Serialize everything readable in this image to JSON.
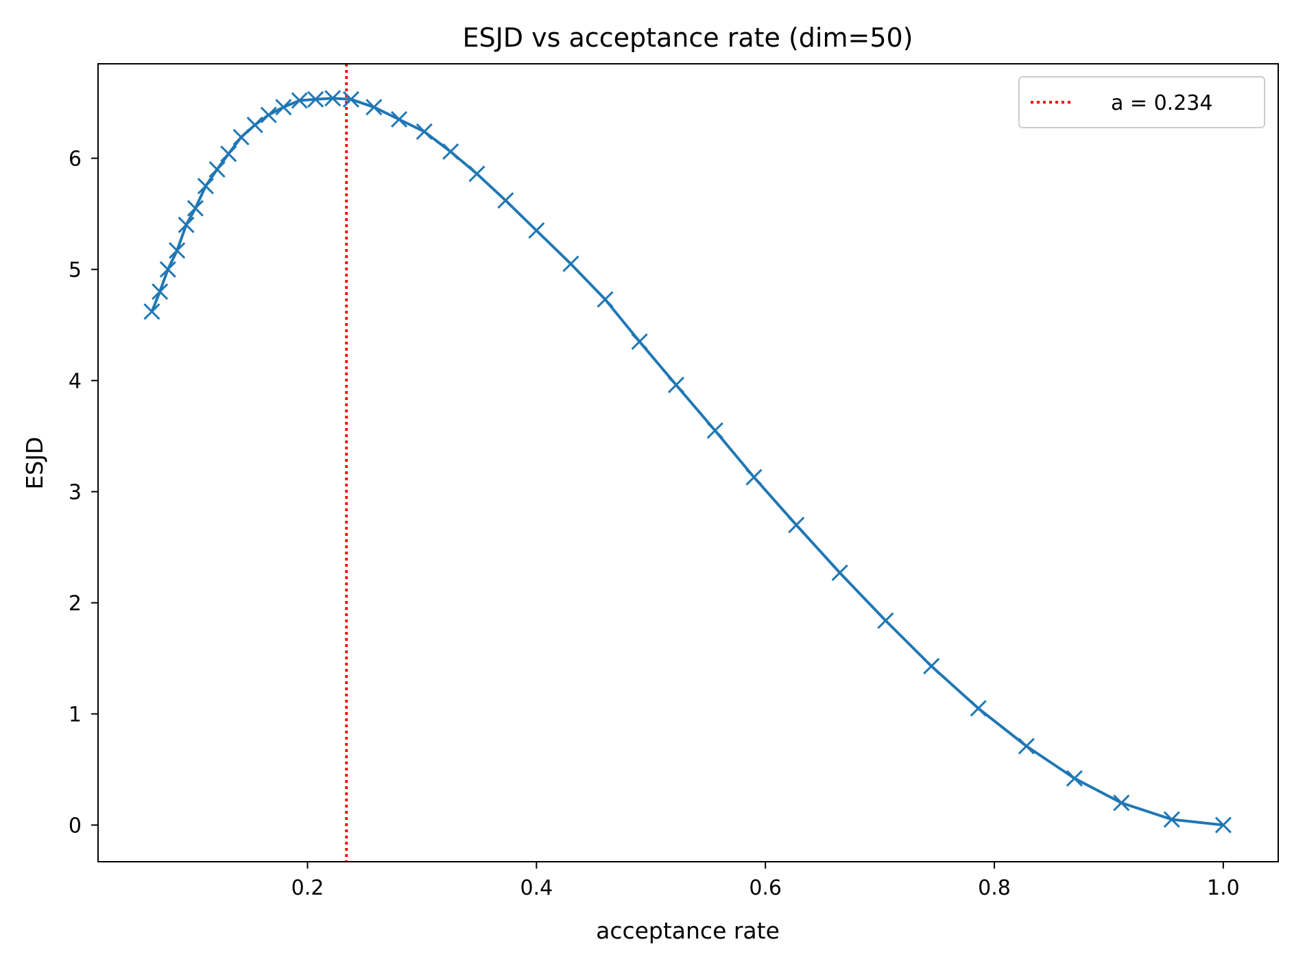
{
  "chart_data": {
    "type": "line",
    "title": "ESJD vs acceptance rate (dim=50)",
    "xlabel": "acceptance rate",
    "ylabel": "ESJD",
    "xlim": [
      0.017,
      1.048
    ],
    "ylim": [
      -0.33,
      6.85
    ],
    "xticks": [
      0.2,
      0.4,
      0.6,
      0.8,
      1.0
    ],
    "xtick_labels": [
      "0.2",
      "0.4",
      "0.6",
      "0.8",
      "1.0"
    ],
    "yticks": [
      0,
      1,
      2,
      3,
      4,
      5,
      6
    ],
    "ytick_labels": [
      "0",
      "1",
      "2",
      "3",
      "4",
      "5",
      "6"
    ],
    "grid": false,
    "legend_position": "top-right",
    "series": [
      {
        "name": "ESJD",
        "color": "#1f77b4",
        "marker": "x",
        "x": [
          0.064,
          0.071,
          0.078,
          0.086,
          0.094,
          0.102,
          0.111,
          0.121,
          0.131,
          0.142,
          0.154,
          0.166,
          0.179,
          0.193,
          0.207,
          0.222,
          0.238,
          0.258,
          0.28,
          0.302,
          0.325,
          0.348,
          0.373,
          0.4,
          0.43,
          0.46,
          0.49,
          0.522,
          0.556,
          0.59,
          0.627,
          0.665,
          0.705,
          0.745,
          0.786,
          0.828,
          0.87,
          0.911,
          0.955,
          1.0
        ],
        "y": [
          4.62,
          4.8,
          5.0,
          5.17,
          5.4,
          5.55,
          5.75,
          5.9,
          6.04,
          6.19,
          6.3,
          6.39,
          6.46,
          6.52,
          6.53,
          6.54,
          6.53,
          6.46,
          6.35,
          6.24,
          6.06,
          5.86,
          5.62,
          5.35,
          5.05,
          4.73,
          4.35,
          3.96,
          3.55,
          3.13,
          2.7,
          2.27,
          1.84,
          1.43,
          1.05,
          0.71,
          0.42,
          0.2,
          0.05,
          0.0
        ]
      }
    ],
    "reference_line": {
      "x": 0.234,
      "color": "#ff0000",
      "style": "dotted",
      "label": "a = 0.234"
    }
  }
}
